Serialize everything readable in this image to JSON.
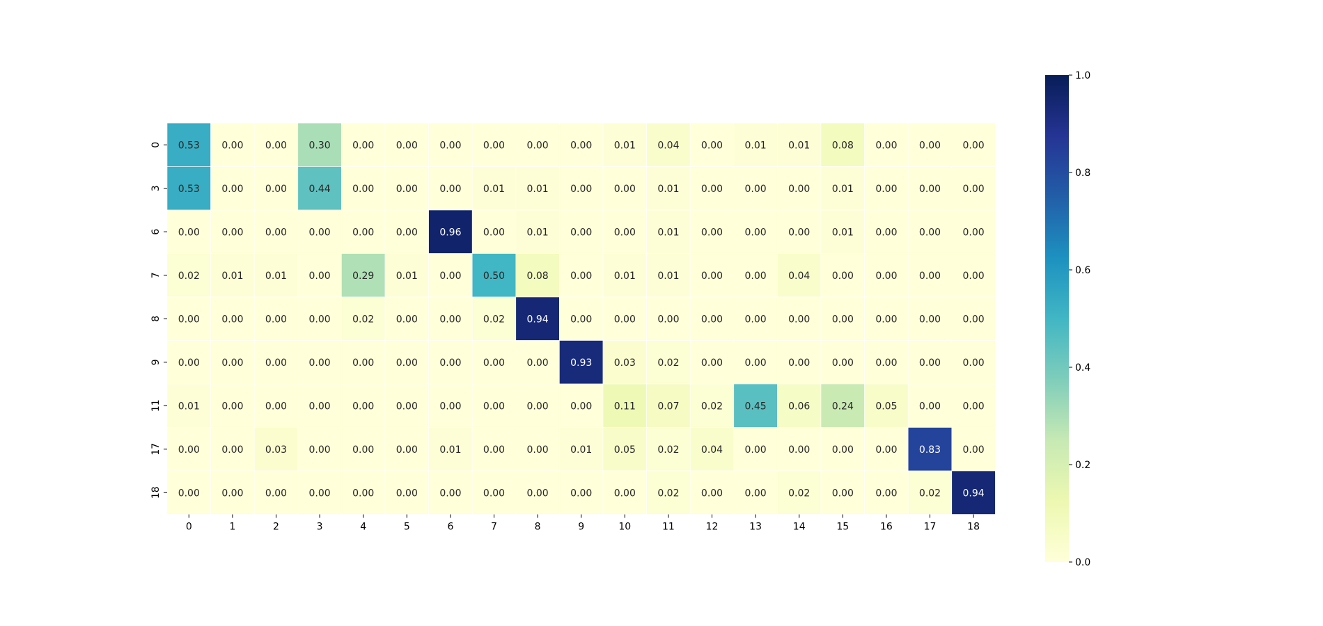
{
  "chart_data": {
    "type": "heatmap",
    "title": "",
    "xlabel": "",
    "ylabel": "",
    "x_categories": [
      "0",
      "1",
      "2",
      "3",
      "4",
      "5",
      "6",
      "7",
      "8",
      "9",
      "10",
      "11",
      "12",
      "13",
      "14",
      "15",
      "16",
      "17",
      "18"
    ],
    "y_categories": [
      "0",
      "3",
      "6",
      "7",
      "8",
      "9",
      "11",
      "17",
      "18"
    ],
    "values": [
      [
        0.53,
        0.0,
        0.0,
        0.3,
        0.0,
        0.0,
        0.0,
        0.0,
        0.0,
        0.0,
        0.01,
        0.04,
        0.0,
        0.01,
        0.01,
        0.08,
        0.0,
        0.0,
        0.0
      ],
      [
        0.53,
        0.0,
        0.0,
        0.44,
        0.0,
        0.0,
        0.0,
        0.01,
        0.01,
        0.0,
        0.0,
        0.01,
        0.0,
        0.0,
        0.0,
        0.01,
        0.0,
        0.0,
        0.0
      ],
      [
        0.0,
        0.0,
        0.0,
        0.0,
        0.0,
        0.0,
        0.96,
        0.0,
        0.01,
        0.0,
        0.0,
        0.01,
        0.0,
        0.0,
        0.0,
        0.01,
        0.0,
        0.0,
        0.0
      ],
      [
        0.02,
        0.01,
        0.01,
        0.0,
        0.29,
        0.01,
        0.0,
        0.5,
        0.08,
        0.0,
        0.01,
        0.01,
        0.0,
        0.0,
        0.04,
        0.0,
        0.0,
        0.0,
        0.0
      ],
      [
        0.0,
        0.0,
        0.0,
        0.0,
        0.02,
        0.0,
        0.0,
        0.02,
        0.94,
        0.0,
        0.0,
        0.0,
        0.0,
        0.0,
        0.0,
        0.0,
        0.0,
        0.0,
        0.0
      ],
      [
        0.0,
        0.0,
        0.0,
        0.0,
        0.0,
        0.0,
        0.0,
        0.0,
        0.0,
        0.93,
        0.03,
        0.02,
        0.0,
        0.0,
        0.0,
        0.0,
        0.0,
        0.0,
        0.0
      ],
      [
        0.01,
        0.0,
        0.0,
        0.0,
        0.0,
        0.0,
        0.0,
        0.0,
        0.0,
        0.0,
        0.11,
        0.07,
        0.02,
        0.45,
        0.06,
        0.24,
        0.05,
        0.0,
        0.0
      ],
      [
        0.0,
        0.0,
        0.03,
        0.0,
        0.0,
        0.0,
        0.01,
        0.0,
        0.0,
        0.01,
        0.05,
        0.02,
        0.04,
        0.0,
        0.0,
        0.0,
        0.0,
        0.83,
        0.0
      ],
      [
        0.0,
        0.0,
        0.0,
        0.0,
        0.0,
        0.0,
        0.0,
        0.0,
        0.0,
        0.0,
        0.0,
        0.02,
        0.0,
        0.0,
        0.02,
        0.0,
        0.0,
        0.02,
        0.94
      ]
    ],
    "vmin": 0.0,
    "vmax": 1.0,
    "colormap": "YlGnBu",
    "cell_labels": true,
    "cell_label_format": "0.00",
    "colorbar": {
      "ticks": [
        "0.0",
        "0.2",
        "0.4",
        "0.6",
        "0.8",
        "1.0"
      ],
      "placement": "right"
    }
  }
}
